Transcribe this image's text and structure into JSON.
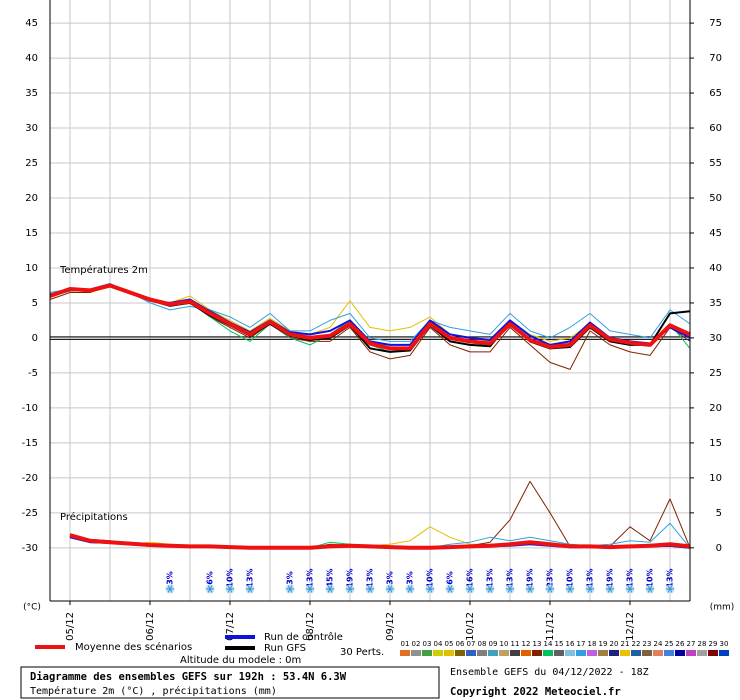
{
  "chart_data": {
    "type": "ensemble",
    "title": "Diagramme des ensembles GEFS sur 192h : 53.4N 6.3W",
    "subtitle": "Température 2m (°C) , précipitations (mm)",
    "run_info": "Ensemble GEFS du 04/12/2022 - 18Z",
    "copyright": "Copyright 2022 Meteociel.fr",
    "altitude": "Altitude du modele : 0m",
    "temperature_label": "Températures 2m",
    "precipitation_label": "Précipitations",
    "y_label": "(°C)",
    "y2_label": "(mm)",
    "perturbations_label": "30 Perts.",
    "x": [
      0,
      6,
      12,
      18,
      24,
      30,
      36,
      42,
      48,
      54,
      60,
      66,
      72,
      78,
      84,
      90,
      96,
      102,
      108,
      114,
      120,
      126,
      132,
      138,
      144,
      150,
      156,
      162,
      168,
      174,
      180,
      186,
      192
    ],
    "xlim": [
      0,
      192
    ],
    "xticks": [
      {
        "value": 6,
        "label": "05/12"
      },
      {
        "value": 30,
        "label": "06/12"
      },
      {
        "value": 54,
        "label": "07/12"
      },
      {
        "value": 78,
        "label": "08/12"
      },
      {
        "value": 102,
        "label": "09/12"
      },
      {
        "value": 126,
        "label": "10/12"
      },
      {
        "value": 150,
        "label": "11/12"
      },
      {
        "value": 174,
        "label": "12/12"
      }
    ],
    "xgrid": [
      6,
      18,
      30,
      42,
      54,
      66,
      78,
      90,
      102,
      114,
      126,
      138,
      150,
      162,
      174,
      186
    ],
    "ylim": [
      -37.6,
      48.3
    ],
    "yticks": [
      45,
      40,
      35,
      30,
      25,
      20,
      15,
      10,
      5,
      0,
      -5,
      -10,
      -15,
      -20,
      -25,
      -30
    ],
    "y2lim": [
      -7.6,
      78.3
    ],
    "y2ticks": [
      75,
      70,
      65,
      60,
      55,
      50,
      45,
      40,
      35,
      30,
      25,
      20,
      15,
      10,
      5,
      0
    ],
    "grid": true,
    "reference_line": 0,
    "series": [
      {
        "name": "Moyenne des scénarios",
        "color": "#ee1111",
        "width": 4,
        "temperature": [
          6,
          7,
          6.8,
          7.5,
          6.5,
          5.5,
          4.8,
          5.2,
          3.5,
          2,
          0.5,
          2.3,
          0.5,
          0,
          0.3,
          2,
          -0.8,
          -1.5,
          -1.5,
          2,
          0,
          -0.5,
          -0.8,
          2,
          -0.3,
          -1.3,
          -1,
          1.8,
          -0.2,
          -0.7,
          -1,
          1.8,
          0.5
        ],
        "precipitation": [
          null,
          1.8,
          1,
          0.8,
          0.6,
          0.4,
          0.3,
          0.2,
          0.2,
          0.1,
          0,
          0,
          0,
          0,
          0.2,
          0.3,
          0.2,
          0.1,
          0,
          0,
          0.1,
          0.2,
          0.3,
          0.5,
          0.8,
          0.5,
          0.2,
          0.2,
          0.1,
          0.2,
          0.3,
          0.5,
          0.2
        ]
      },
      {
        "name": "Run de contrôle",
        "color": "#1111dd",
        "width": 2,
        "temperature": [
          6.2,
          7,
          6.8,
          7.6,
          6.6,
          5.3,
          5,
          5.5,
          3.8,
          2.2,
          0.8,
          2.5,
          0.8,
          0.5,
          1,
          2.5,
          -0.5,
          -1,
          -1,
          2.5,
          0.5,
          0,
          -0.3,
          2.5,
          0.3,
          -1,
          -0.5,
          2.2,
          0,
          -0.5,
          -0.8,
          1.5,
          0
        ],
        "precipitation": [
          null,
          1.5,
          0.8,
          0.7,
          0.5,
          0.3,
          0.2,
          0.2,
          0.1,
          0,
          0,
          0,
          0,
          0,
          0.1,
          0.2,
          0.1,
          0,
          0,
          0,
          0,
          0.1,
          0.2,
          0.3,
          0.5,
          0.3,
          0.1,
          0.1,
          0,
          0.1,
          0.2,
          0.3,
          0
        ]
      },
      {
        "name": "Run GFS",
        "color": "#000000",
        "width": 2,
        "temperature": [
          6,
          6.8,
          6.8,
          7.4,
          6.4,
          5.4,
          4.6,
          5,
          3.2,
          1.8,
          0.3,
          2,
          0.3,
          -0.3,
          0,
          1.8,
          -1.5,
          -2,
          -1.8,
          1.8,
          -0.5,
          -1,
          -1.2,
          2.2,
          -0.5,
          -1.5,
          -1.3,
          1.5,
          -0.5,
          -1,
          -1,
          3.5,
          3.8
        ],
        "precipitation": [
          null,
          1.6,
          0.9,
          0.7,
          0.5,
          0.3,
          0.3,
          0.2,
          0.1,
          0,
          0,
          0,
          0,
          0,
          0.2,
          0.3,
          0.1,
          0,
          0,
          0,
          0.1,
          0.2,
          0.2,
          0.4,
          0.6,
          0.4,
          0.1,
          0.1,
          0.1,
          0.2,
          0.2,
          0.3,
          0
        ]
      }
    ],
    "perturbations": [
      {
        "name": "01",
        "color": "#e07020"
      },
      {
        "name": "02",
        "color": "#909090"
      },
      {
        "name": "03",
        "color": "#40a040"
      },
      {
        "name": "04",
        "color": "#d0d000"
      },
      {
        "name": "05",
        "color": "#e0c000",
        "temperature": [
          6,
          7,
          6.5,
          7.3,
          6.3,
          5.5,
          5,
          6,
          4,
          2.5,
          1,
          2.8,
          1,
          0.5,
          1.5,
          5.3,
          1.5,
          1,
          1.5,
          3,
          0.5,
          0,
          -0.5,
          2.5,
          0.5,
          -0.5,
          0,
          2,
          0,
          -0.5,
          -1,
          2,
          0.5
        ],
        "precipitation": [
          null,
          1.5,
          1,
          1,
          0.5,
          0.8,
          0.5,
          0.3,
          0.2,
          0,
          0,
          0,
          0,
          0,
          0.5,
          0.5,
          0.3,
          0.5,
          1,
          3,
          1.5,
          0.5,
          0.5,
          0.3,
          0.5,
          0.3,
          0.3,
          0.3,
          0.2,
          0.2,
          0.3,
          0.5,
          0
        ]
      },
      {
        "name": "06",
        "color": "#806000"
      },
      {
        "name": "07",
        "color": "#3060c0"
      },
      {
        "name": "08",
        "color": "#808080"
      },
      {
        "name": "09",
        "color": "#40a0c0"
      },
      {
        "name": "10",
        "color": "#c0a060"
      },
      {
        "name": "11",
        "color": "#404040"
      },
      {
        "name": "12",
        "color": "#e06000"
      },
      {
        "name": "13",
        "color": "#802000",
        "temperature": [
          5.5,
          6.5,
          6.5,
          7.5,
          6.5,
          5.3,
          4.5,
          5,
          3,
          1.5,
          0,
          2,
          0,
          -0.5,
          -0.5,
          1.5,
          -2,
          -3,
          -2.5,
          1.5,
          -1,
          -2,
          -2,
          1.5,
          -1,
          -3.5,
          -4.5,
          1,
          -1,
          -2,
          -2.5,
          1.5,
          -0.5
        ],
        "precipitation": [
          null,
          2,
          1.2,
          1,
          0.6,
          0.4,
          0.3,
          0.2,
          0.2,
          0.1,
          0,
          0,
          0,
          0,
          0.5,
          0.3,
          0.2,
          0.1,
          0,
          0,
          0.2,
          0.3,
          0.8,
          4,
          9.5,
          5,
          0.2,
          0.2,
          0.2,
          3,
          1,
          7,
          0
        ]
      },
      {
        "name": "14",
        "color": "#00c060",
        "temperature": [
          6,
          7,
          7,
          7.5,
          6.5,
          5.5,
          5,
          5.5,
          3,
          1,
          -0.5,
          2,
          0,
          -1,
          0.5,
          2.5,
          -1,
          -2,
          -1.5,
          2,
          -0.5,
          -1,
          -1,
          2,
          -0.5,
          -1.5,
          -1,
          1.5,
          -0.5,
          -1,
          -1,
          2,
          -1.5
        ],
        "precipitation": [
          null,
          1.8,
          1,
          0.8,
          0.5,
          0.3,
          0.3,
          0.2,
          0.1,
          0,
          0,
          0,
          0,
          0,
          0.8,
          0.5,
          0.2,
          0,
          0,
          0,
          0.2,
          0.2,
          0.5,
          0.5,
          0.8,
          0.3,
          0.2,
          0.2,
          0.2,
          0.3,
          0.5,
          0.5,
          0
        ]
      },
      {
        "name": "15",
        "color": "#606060"
      },
      {
        "name": "16",
        "color": "#80c0e0"
      },
      {
        "name": "17",
        "color": "#30a0e0",
        "temperature": [
          6.5,
          7,
          7,
          7.8,
          6.5,
          5,
          4,
          4.5,
          4,
          3,
          1.5,
          3.5,
          1,
          1,
          2.5,
          3.5,
          0,
          -0.5,
          -0.5,
          2.5,
          1.5,
          1,
          0.5,
          3.5,
          1,
          0,
          1.5,
          3.5,
          1,
          0.5,
          0,
          4,
          2
        ],
        "precipitation": [
          null,
          1.5,
          1,
          0.8,
          0.5,
          0.3,
          0.2,
          0.2,
          0.1,
          0,
          0,
          0,
          0,
          0,
          0.2,
          0.2,
          0.1,
          0,
          0,
          0,
          0.5,
          0.8,
          1.5,
          1,
          1.5,
          1,
          0.5,
          0.3,
          0.5,
          1,
          0.8,
          3.5,
          0
        ]
      },
      {
        "name": "18",
        "color": "#c060e0"
      },
      {
        "name": "19",
        "color": "#a08040"
      },
      {
        "name": "20",
        "color": "#202080"
      },
      {
        "name": "21",
        "color": "#f0c000"
      },
      {
        "name": "22",
        "color": "#2060a0"
      },
      {
        "name": "23",
        "color": "#806040"
      },
      {
        "name": "24",
        "color": "#e08060"
      },
      {
        "name": "25",
        "color": "#4080e0"
      },
      {
        "name": "26",
        "color": "#0000a0"
      },
      {
        "name": "27",
        "color": "#c040c0"
      },
      {
        "name": "28",
        "color": "#a0a0a0"
      },
      {
        "name": "29",
        "color": "#800000"
      },
      {
        "name": "30",
        "color": "#0040c0"
      }
    ],
    "snow_probability": {
      "x": [
        36,
        48,
        54,
        60,
        72,
        78,
        84,
        90,
        96,
        102,
        108,
        114,
        120,
        126,
        132,
        138,
        144,
        150,
        156,
        162,
        168,
        174,
        180,
        186
      ],
      "values": [
        3,
        6,
        10,
        13,
        3,
        13,
        45,
        19,
        13,
        3,
        3,
        10,
        6,
        16,
        13,
        13,
        19,
        23,
        10,
        13,
        19,
        13,
        10,
        13
      ],
      "value_labels": [
        "3%",
        "6%",
        "10%",
        "13%",
        "3%",
        "13%",
        "45%",
        "19%",
        "13%",
        "3%",
        "3%",
        "10%",
        "6%",
        "16%",
        "13%",
        "13%",
        "19%",
        "23%",
        "10%",
        "13%",
        "19%",
        "13%",
        "10%",
        "13%"
      ]
    }
  }
}
